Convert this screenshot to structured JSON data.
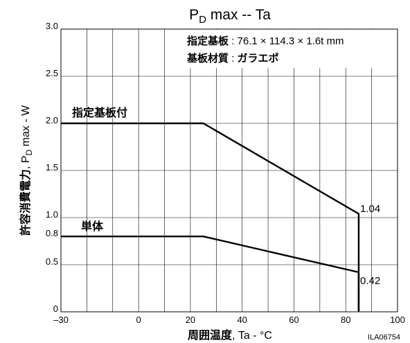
{
  "chart_data": {
    "type": "line",
    "title": {
      "main": "P",
      "sub": "D",
      "rest": " max  --  Ta"
    },
    "xlabel": {
      "bold": "周囲温度",
      "rest": ", Ta - °C"
    },
    "ylabel": {
      "bold": "許容消費電力",
      "rest1": ", P",
      "sub": "D",
      "rest2": " max  -  W"
    },
    "xlim": [
      -30,
      100
    ],
    "ylim": [
      0,
      3.0
    ],
    "x_ticks": [
      {
        "v": -30,
        "label": "–30"
      },
      {
        "v": 0,
        "label": "0"
      },
      {
        "v": 20,
        "label": "20"
      },
      {
        "v": 40,
        "label": "40"
      },
      {
        "v": 60,
        "label": "60"
      },
      {
        "v": 80,
        "label": "80"
      },
      {
        "v": 100,
        "label": "100"
      }
    ],
    "y_ticks": [
      {
        "v": 0,
        "label": "0"
      },
      {
        "v": 0.5,
        "label": "0.5"
      },
      {
        "v": 0.8,
        "label": "0.8"
      },
      {
        "v": 1.0,
        "label": "1.0"
      },
      {
        "v": 1.5,
        "label": "1.5"
      },
      {
        "v": 2.0,
        "label": "2.0"
      },
      {
        "v": 2.5,
        "label": "2.5"
      },
      {
        "v": 3.0,
        "label": "3.0"
      }
    ],
    "x_grid": [
      -30,
      -20,
      -10,
      0,
      10,
      20,
      30,
      40,
      50,
      60,
      70,
      80,
      90,
      100
    ],
    "y_grid": [
      0,
      0.5,
      1.0,
      1.5,
      2.0,
      2.5,
      3.0
    ],
    "grid": true,
    "series": [
      {
        "name": "指定基板付",
        "x": [
          -30,
          25,
          85,
          85
        ],
        "y": [
          2.0,
          2.0,
          1.04,
          0
        ]
      },
      {
        "name": "単体",
        "x": [
          -30,
          25,
          85,
          85
        ],
        "y": [
          0.8,
          0.8,
          0.42,
          0
        ]
      }
    ],
    "annotations": [
      {
        "text": "1.04",
        "x": 85,
        "y": 1.04
      },
      {
        "text": "0.42",
        "x": 85,
        "y": 0.42
      }
    ],
    "note": [
      {
        "key": "指定基板",
        "value": " : 76.1 × 114.3 × 1.6t mm"
      },
      {
        "key": "基板材質",
        "value": " : ",
        "value_bold": "ガラエポ"
      }
    ]
  },
  "footer": {
    "code": "ILA06754"
  }
}
